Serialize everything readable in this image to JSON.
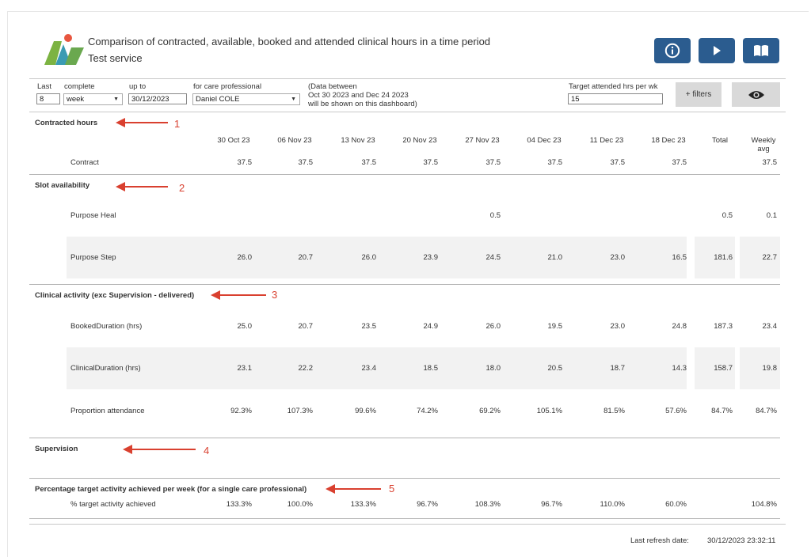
{
  "header": {
    "title": "Comparison of contracted, available, booked and attended clinical hours in a time period",
    "subtitle": "Test service",
    "buttons": [
      {
        "name": "info-button",
        "icon": "info-icon"
      },
      {
        "name": "play-button",
        "icon": "play-icon"
      },
      {
        "name": "book-button",
        "icon": "book-icon"
      }
    ],
    "accent_color": "#2b5c8f"
  },
  "filters": {
    "last_label": "Last",
    "last_value": "8",
    "complete_label": "complete",
    "period_value": "week",
    "upto_label": "up to",
    "upto_value": "30/12/2023",
    "professional_label": "for care professional",
    "professional_value": "Daniel COLE",
    "note_line1": "(Data between",
    "note_line2": "Oct 30 2023 and Dec 24 2023",
    "note_line3": "will be shown on this dashboard)",
    "target_label": "Target attended hrs per wk",
    "target_value": "15",
    "filters_button": "+ filters"
  },
  "columns": [
    "30 Oct 23",
    "06 Nov 23",
    "13 Nov 23",
    "20 Nov 23",
    "27 Nov 23",
    "04 Dec 23",
    "11 Dec 23",
    "18 Dec 23"
  ],
  "total_header": "Total",
  "weekly_header_1": "Weekly",
  "weekly_header_2": "avg",
  "sections": {
    "contracted": {
      "title": "Contracted hours",
      "rows": [
        {
          "label": "Contract",
          "values": [
            "37.5",
            "37.5",
            "37.5",
            "37.5",
            "37.5",
            "37.5",
            "37.5",
            "37.5"
          ],
          "total": "",
          "avg": "37.5"
        }
      ]
    },
    "slots": {
      "title": "Slot availability",
      "rows": [
        {
          "label": "Purpose Heal",
          "values": [
            "",
            "",
            "",
            "",
            "0.5",
            "",
            "",
            ""
          ],
          "total": "0.5",
          "avg": "0.1"
        },
        {
          "label": "Purpose Step",
          "values": [
            "26.0",
            "20.7",
            "26.0",
            "23.9",
            "24.5",
            "21.0",
            "23.0",
            "16.5"
          ],
          "total": "181.6",
          "avg": "22.7"
        }
      ]
    },
    "clinical": {
      "title": "Clinical activity (exc Supervision - delivered)",
      "rows": [
        {
          "label": "BookedDuration (hrs)",
          "values": [
            "25.0",
            "20.7",
            "23.5",
            "24.9",
            "26.0",
            "19.5",
            "23.0",
            "24.8"
          ],
          "total": "187.3",
          "avg": "23.4"
        },
        {
          "label": "ClinicalDuration (hrs)",
          "values": [
            "23.1",
            "22.2",
            "23.4",
            "18.5",
            "18.0",
            "20.5",
            "18.7",
            "14.3"
          ],
          "total": "158.7",
          "avg": "19.8"
        },
        {
          "label": "Proportion attendance",
          "values": [
            "92.3%",
            "107.3%",
            "99.6%",
            "74.2%",
            "69.2%",
            "105.1%",
            "81.5%",
            "57.6%"
          ],
          "total": "84.7%",
          "avg": "84.7%"
        }
      ]
    },
    "supervision": {
      "title": "Supervision"
    },
    "target": {
      "title": "Percentage target activity achieved per week (for a single care professional)",
      "rows": [
        {
          "label": "% target activity achieved",
          "values": [
            "133.3%",
            "100.0%",
            "133.3%",
            "96.7%",
            "108.3%",
            "96.7%",
            "110.0%",
            "60.0%"
          ],
          "total": "",
          "avg": "104.8%"
        }
      ]
    }
  },
  "annotations": [
    "1",
    "2",
    "3",
    "4",
    "5"
  ],
  "annotation_color": "#d9402f",
  "footer": {
    "refresh_label": "Last refresh date:",
    "refresh_value": "30/12/2023 23:32:11"
  }
}
